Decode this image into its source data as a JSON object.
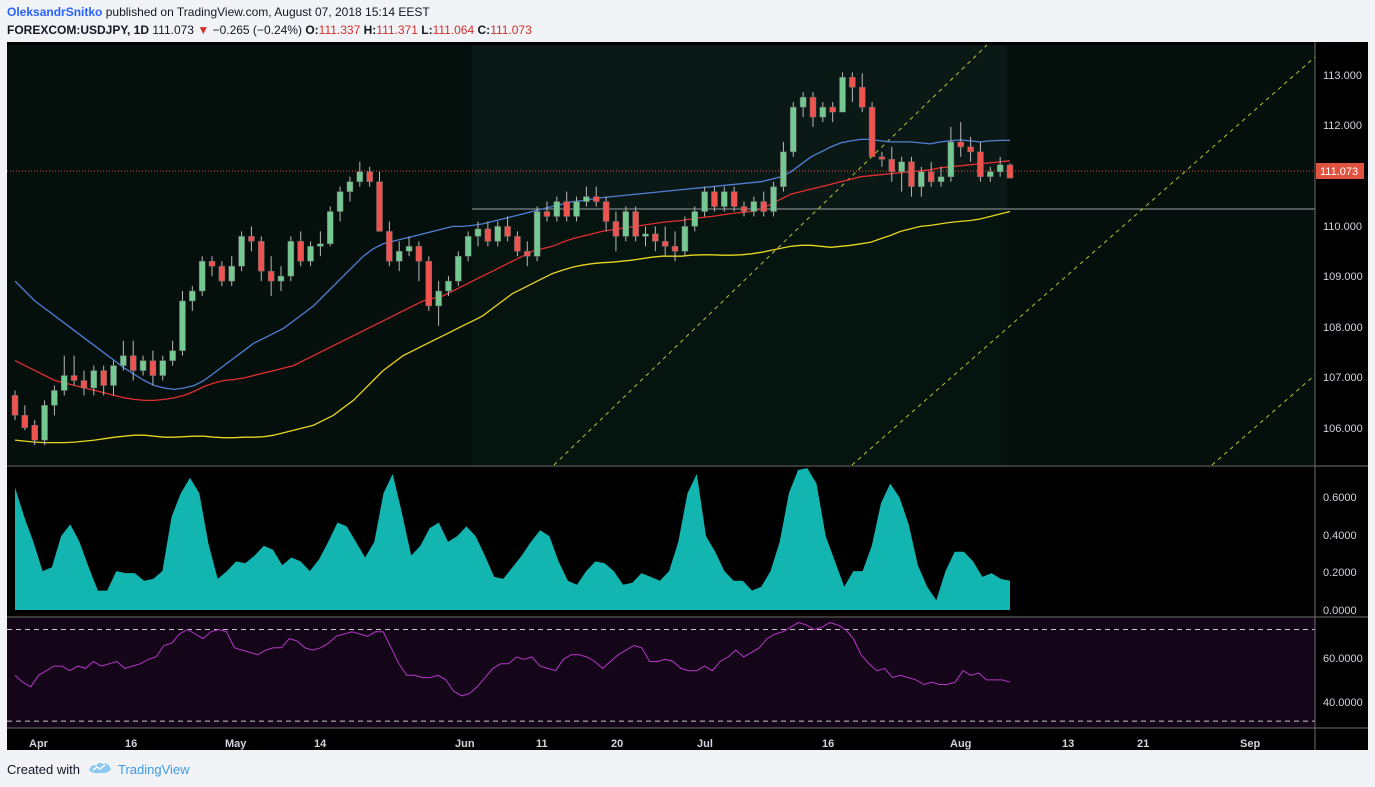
{
  "header": {
    "author": "OleksandrSnitko",
    "published_text": "published on TradingView.com, August 07, 2018 15:14 EEST",
    "symbol": "FOREXCOM:USDJPY, 1D",
    "last": "111.073",
    "change": "−0.265 (−0.24%)",
    "open_label": "O:",
    "open": "111.337",
    "high_label": "H:",
    "high": "111.371",
    "low_label": "L:",
    "low": "111.064",
    "close_label": "C:",
    "close": "111.073"
  },
  "price_axis": {
    "ticks": [
      "113.000",
      "112.000",
      "110.000",
      "109.000",
      "108.000",
      "107.000",
      "106.000"
    ],
    "current_price_label": "111.073"
  },
  "atr_axis": {
    "ticks": [
      "0.6000",
      "0.4000",
      "0.2000",
      "0.0000"
    ]
  },
  "rsi_axis": {
    "ticks": [
      "60.0000",
      "40.0000"
    ]
  },
  "time_axis": {
    "labels": [
      "Apr",
      "16",
      "May",
      "14",
      "Jun",
      "11",
      "20",
      "Jul",
      "16",
      "Aug",
      "13",
      "21",
      "Sep"
    ]
  },
  "footer": {
    "created_with": "Created with",
    "brand": "TradingView"
  },
  "colors": {
    "up_candle": "#76c893",
    "down_candle": "#ef5350",
    "ema_fast": "#4f7fd6",
    "ema_mid": "#e03030",
    "ema_slow": "#e8d71f",
    "atr_fill": "#13b5b1",
    "rsi_line": "#b636c9",
    "price_label_bg": "#e0533e"
  },
  "chart_data": [
    {
      "type": "candlestick",
      "title": "FOREXCOM:USDJPY, 1D",
      "ylim": [
        105.3,
        113.75
      ],
      "x_labels": [
        "Apr",
        "16",
        "May",
        "14",
        "Jun",
        "11",
        "20",
        "Jul",
        "16",
        "Aug",
        "13",
        "21",
        "Sep"
      ],
      "ohlc": [
        [
          106.7,
          106.8,
          106.2,
          106.3
        ],
        [
          106.3,
          106.5,
          106.0,
          106.05
        ],
        [
          106.1,
          106.2,
          105.7,
          105.8
        ],
        [
          105.8,
          106.6,
          105.7,
          106.5
        ],
        [
          106.5,
          106.9,
          106.3,
          106.8
        ],
        [
          106.8,
          107.5,
          106.7,
          107.1
        ],
        [
          107.1,
          107.5,
          106.9,
          107.0
        ],
        [
          107.0,
          107.2,
          106.7,
          106.85
        ],
        [
          106.85,
          107.3,
          106.7,
          107.2
        ],
        [
          107.2,
          107.3,
          106.7,
          106.9
        ],
        [
          106.9,
          107.4,
          106.7,
          107.3
        ],
        [
          107.3,
          107.8,
          107.2,
          107.5
        ],
        [
          107.5,
          107.8,
          107.0,
          107.2
        ],
        [
          107.2,
          107.5,
          107.1,
          107.4
        ],
        [
          107.4,
          107.6,
          106.9,
          107.1
        ],
        [
          107.1,
          107.5,
          107.0,
          107.4
        ],
        [
          107.4,
          107.8,
          107.3,
          107.6
        ],
        [
          107.6,
          108.8,
          107.5,
          108.6
        ],
        [
          108.6,
          108.9,
          108.4,
          108.8
        ],
        [
          108.8,
          109.5,
          108.7,
          109.4
        ],
        [
          109.4,
          109.5,
          109.1,
          109.3
        ],
        [
          109.3,
          109.4,
          108.9,
          109.0
        ],
        [
          109.0,
          109.5,
          108.9,
          109.3
        ],
        [
          109.3,
          110.0,
          109.2,
          109.9
        ],
        [
          109.9,
          110.1,
          109.6,
          109.8
        ],
        [
          109.8,
          109.9,
          109.0,
          109.2
        ],
        [
          109.2,
          109.5,
          108.7,
          109.0
        ],
        [
          109.0,
          109.3,
          108.8,
          109.1
        ],
        [
          109.1,
          109.9,
          109.0,
          109.8
        ],
        [
          109.8,
          110.0,
          109.3,
          109.4
        ],
        [
          109.4,
          109.8,
          109.3,
          109.7
        ],
        [
          109.7,
          110.0,
          109.5,
          109.75
        ],
        [
          109.75,
          110.5,
          109.7,
          110.4
        ],
        [
          110.4,
          110.9,
          110.2,
          110.8
        ],
        [
          110.8,
          111.1,
          110.6,
          111.0
        ],
        [
          111.0,
          111.4,
          110.9,
          111.2
        ],
        [
          111.2,
          111.3,
          110.9,
          111.0
        ],
        [
          111.0,
          111.2,
          110.0,
          110.0
        ],
        [
          110.0,
          110.2,
          109.3,
          109.4
        ],
        [
          109.4,
          109.8,
          109.2,
          109.6
        ],
        [
          109.6,
          109.9,
          109.5,
          109.7
        ],
        [
          109.7,
          109.8,
          109.0,
          109.4
        ],
        [
          109.4,
          109.5,
          108.4,
          108.5
        ],
        [
          108.5,
          109.0,
          108.1,
          108.8
        ],
        [
          108.8,
          109.1,
          108.7,
          109.0
        ],
        [
          109.0,
          109.6,
          108.9,
          109.5
        ],
        [
          109.5,
          110.0,
          109.4,
          109.9
        ],
        [
          109.9,
          110.2,
          109.7,
          110.05
        ],
        [
          110.05,
          110.2,
          109.7,
          109.8
        ],
        [
          109.8,
          110.2,
          109.7,
          110.1
        ],
        [
          110.1,
          110.3,
          109.8,
          109.9
        ],
        [
          109.9,
          110.0,
          109.5,
          109.6
        ],
        [
          109.6,
          109.8,
          109.3,
          109.5
        ],
        [
          109.5,
          110.5,
          109.4,
          110.4
        ],
        [
          110.4,
          110.6,
          110.2,
          110.3
        ],
        [
          110.3,
          110.7,
          110.2,
          110.6
        ],
        [
          110.6,
          110.8,
          110.2,
          110.3
        ],
        [
          110.3,
          110.7,
          110.2,
          110.6
        ],
        [
          110.6,
          110.9,
          110.5,
          110.7
        ],
        [
          110.7,
          110.9,
          110.5,
          110.6
        ],
        [
          110.6,
          110.7,
          110.0,
          110.2
        ],
        [
          110.2,
          110.4,
          109.6,
          109.9
        ],
        [
          109.9,
          110.5,
          109.8,
          110.4
        ],
        [
          110.4,
          110.5,
          109.8,
          109.9
        ],
        [
          109.9,
          110.1,
          109.7,
          109.95
        ],
        [
          109.95,
          110.1,
          109.6,
          109.8
        ],
        [
          109.8,
          110.1,
          109.5,
          109.7
        ],
        [
          109.7,
          110.0,
          109.4,
          109.6
        ],
        [
          109.6,
          110.3,
          109.5,
          110.1
        ],
        [
          110.1,
          110.5,
          110.0,
          110.4
        ],
        [
          110.4,
          110.9,
          110.3,
          110.8
        ],
        [
          110.8,
          110.9,
          110.4,
          110.5
        ],
        [
          110.5,
          110.9,
          110.4,
          110.8
        ],
        [
          110.8,
          110.9,
          110.4,
          110.5
        ],
        [
          110.5,
          110.6,
          110.3,
          110.4
        ],
        [
          110.4,
          110.7,
          110.3,
          110.6
        ],
        [
          110.6,
          110.8,
          110.3,
          110.4
        ],
        [
          110.4,
          111.0,
          110.3,
          110.9
        ],
        [
          110.9,
          111.8,
          110.8,
          111.6
        ],
        [
          111.6,
          112.6,
          111.5,
          112.5
        ],
        [
          112.5,
          112.8,
          112.3,
          112.7
        ],
        [
          112.7,
          112.8,
          112.1,
          112.3
        ],
        [
          112.3,
          112.6,
          112.2,
          112.5
        ],
        [
          112.5,
          112.6,
          112.2,
          112.4
        ],
        [
          112.4,
          113.2,
          112.4,
          113.1
        ],
        [
          113.1,
          113.2,
          112.6,
          112.9
        ],
        [
          112.9,
          113.18,
          112.4,
          112.5
        ],
        [
          112.5,
          112.6,
          111.5,
          111.5
        ],
        [
          111.5,
          111.6,
          111.3,
          111.45
        ],
        [
          111.45,
          111.7,
          111.0,
          111.2
        ],
        [
          111.2,
          111.5,
          110.8,
          111.4
        ],
        [
          111.4,
          111.5,
          110.7,
          110.9
        ],
        [
          110.9,
          111.3,
          110.7,
          111.2
        ],
        [
          111.2,
          111.4,
          110.9,
          111.0
        ],
        [
          111.0,
          111.3,
          110.9,
          111.1
        ],
        [
          111.1,
          112.1,
          111.0,
          111.8
        ],
        [
          111.8,
          112.2,
          111.5,
          111.7
        ],
        [
          111.7,
          111.9,
          111.4,
          111.6
        ],
        [
          111.6,
          111.8,
          111.0,
          111.1
        ],
        [
          111.1,
          111.3,
          111.0,
          111.2
        ],
        [
          111.2,
          111.5,
          111.1,
          111.34
        ],
        [
          111.337,
          111.371,
          111.064,
          111.073
        ]
      ],
      "ema_fast": [
        109.0,
        108.8,
        108.6,
        108.45,
        108.3,
        108.15,
        108.0,
        107.85,
        107.7,
        107.55,
        107.4,
        107.25,
        107.12,
        107.0,
        106.9,
        106.85,
        106.82,
        106.85,
        106.9,
        107.0,
        107.15,
        107.3,
        107.45,
        107.6,
        107.75,
        107.85,
        107.95,
        108.05,
        108.2,
        108.35,
        108.5,
        108.7,
        108.9,
        109.1,
        109.3,
        109.5,
        109.65,
        109.75,
        109.8,
        109.85,
        109.9,
        109.95,
        110.0,
        110.05,
        110.1,
        110.1,
        110.12,
        110.15,
        110.2,
        110.25,
        110.3,
        110.35,
        110.4,
        110.45,
        110.5,
        110.55,
        110.6,
        110.62,
        110.65,
        110.68,
        110.7,
        110.72,
        110.74,
        110.76,
        110.78,
        110.8,
        110.82,
        110.84,
        110.86,
        110.88,
        110.9,
        110.92,
        110.94,
        110.96,
        110.98,
        111.0,
        111.05,
        111.1,
        111.2,
        111.35,
        111.5,
        111.6,
        111.7,
        111.78,
        111.82,
        111.85,
        111.85,
        111.82,
        111.8,
        111.8,
        111.8,
        111.78,
        111.76,
        111.8,
        111.82,
        111.84,
        111.82,
        111.8,
        111.82,
        111.83,
        111.83
      ],
      "ema_mid": [
        107.4,
        107.3,
        107.2,
        107.1,
        107.0,
        106.95,
        106.9,
        106.85,
        106.8,
        106.75,
        106.7,
        106.65,
        106.62,
        106.6,
        106.6,
        106.62,
        106.65,
        106.7,
        106.78,
        106.88,
        106.95,
        107.0,
        107.02,
        107.05,
        107.1,
        107.15,
        107.2,
        107.25,
        107.3,
        107.4,
        107.5,
        107.6,
        107.7,
        107.8,
        107.9,
        108.0,
        108.1,
        108.2,
        108.3,
        108.4,
        108.5,
        108.6,
        108.65,
        108.7,
        108.8,
        108.9,
        109.0,
        109.1,
        109.2,
        109.3,
        109.4,
        109.5,
        109.6,
        109.65,
        109.7,
        109.78,
        109.85,
        109.9,
        109.95,
        110.0,
        110.03,
        110.06,
        110.09,
        110.12,
        110.15,
        110.18,
        110.2,
        110.22,
        110.25,
        110.28,
        110.3,
        110.33,
        110.36,
        110.38,
        110.4,
        110.45,
        110.55,
        110.65,
        110.75,
        110.8,
        110.85,
        110.9,
        110.95,
        111.0,
        111.05,
        111.1,
        111.12,
        111.14,
        111.16,
        111.18,
        111.2,
        111.22,
        111.24,
        111.28,
        111.3,
        111.32,
        111.34,
        111.36,
        111.38,
        111.4,
        111.42
      ],
      "ema_slow": [
        105.8,
        105.78,
        105.76,
        105.75,
        105.75,
        105.75,
        105.76,
        105.78,
        105.8,
        105.83,
        105.86,
        105.88,
        105.9,
        105.9,
        105.88,
        105.86,
        105.86,
        105.87,
        105.88,
        105.88,
        105.86,
        105.85,
        105.85,
        105.86,
        105.86,
        105.87,
        105.9,
        105.95,
        106.0,
        106.05,
        106.1,
        106.2,
        106.3,
        106.45,
        106.6,
        106.8,
        107.0,
        107.2,
        107.35,
        107.5,
        107.6,
        107.7,
        107.8,
        107.9,
        108.0,
        108.1,
        108.2,
        108.3,
        108.45,
        108.6,
        108.75,
        108.85,
        108.95,
        109.05,
        109.15,
        109.22,
        109.28,
        109.32,
        109.35,
        109.37,
        109.38,
        109.4,
        109.42,
        109.45,
        109.48,
        109.5,
        109.5,
        109.5,
        109.52,
        109.53,
        109.53,
        109.52,
        109.52,
        109.53,
        109.55,
        109.58,
        109.62,
        109.66,
        109.7,
        109.72,
        109.72,
        109.7,
        109.68,
        109.7,
        109.72,
        109.75,
        109.78,
        109.85,
        109.92,
        110.0,
        110.05,
        110.1,
        110.12,
        110.15,
        110.18,
        110.2,
        110.22,
        110.25,
        110.3,
        110.35,
        110.4
      ]
    },
    {
      "type": "area",
      "ylim": [
        0,
        0.72
      ],
      "values": [
        0.63,
        0.48,
        0.35,
        0.2,
        0.22,
        0.38,
        0.44,
        0.35,
        0.22,
        0.1,
        0.1,
        0.2,
        0.19,
        0.19,
        0.15,
        0.16,
        0.2,
        0.48,
        0.6,
        0.68,
        0.6,
        0.34,
        0.16,
        0.2,
        0.25,
        0.24,
        0.28,
        0.33,
        0.31,
        0.23,
        0.27,
        0.25,
        0.2,
        0.26,
        0.35,
        0.45,
        0.43,
        0.35,
        0.27,
        0.35,
        0.6,
        0.7,
        0.5,
        0.28,
        0.33,
        0.42,
        0.45,
        0.35,
        0.38,
        0.43,
        0.38,
        0.28,
        0.17,
        0.16,
        0.22,
        0.28,
        0.35,
        0.41,
        0.38,
        0.25,
        0.15,
        0.13,
        0.2,
        0.25,
        0.24,
        0.2,
        0.13,
        0.14,
        0.19,
        0.17,
        0.15,
        0.2,
        0.35,
        0.6,
        0.7,
        0.38,
        0.3,
        0.2,
        0.15,
        0.15,
        0.1,
        0.12,
        0.2,
        0.35,
        0.6,
        0.72,
        0.73,
        0.65,
        0.38,
        0.25,
        0.12,
        0.2,
        0.2,
        0.33,
        0.55,
        0.65,
        0.58,
        0.44,
        0.23,
        0.12,
        0.05,
        0.2,
        0.3,
        0.3,
        0.25,
        0.17,
        0.19,
        0.16,
        0.15
      ]
    },
    {
      "type": "line",
      "ylim": [
        27,
        75
      ],
      "values": [
        50,
        47,
        45,
        50,
        52,
        54,
        54,
        52,
        54,
        53,
        56,
        54,
        55,
        56,
        53,
        54,
        55,
        57,
        58,
        63,
        64,
        68,
        70,
        68,
        66,
        69,
        70,
        69,
        62,
        61,
        60,
        59,
        61,
        62,
        62,
        66,
        65,
        62,
        61,
        62,
        64,
        67,
        68,
        69,
        68,
        67,
        69,
        69,
        62,
        55,
        50,
        50,
        49,
        49,
        50,
        48,
        43,
        41,
        42,
        45,
        49,
        53,
        55,
        55,
        58,
        57,
        58,
        54,
        53,
        52,
        57,
        59,
        59,
        58,
        56,
        53,
        56,
        59,
        61,
        63,
        62,
        56,
        56,
        57,
        56,
        53,
        52,
        52,
        54,
        52,
        56,
        58,
        61,
        58,
        60,
        62,
        66,
        68,
        69,
        71,
        73,
        72,
        70,
        71,
        73,
        72,
        70,
        66,
        59,
        55,
        52,
        53,
        49,
        50,
        49,
        48,
        46,
        47,
        46,
        46,
        47,
        52,
        50,
        51,
        48,
        48,
        48,
        47
      ],
      "guides": [
        30,
        70
      ]
    }
  ]
}
